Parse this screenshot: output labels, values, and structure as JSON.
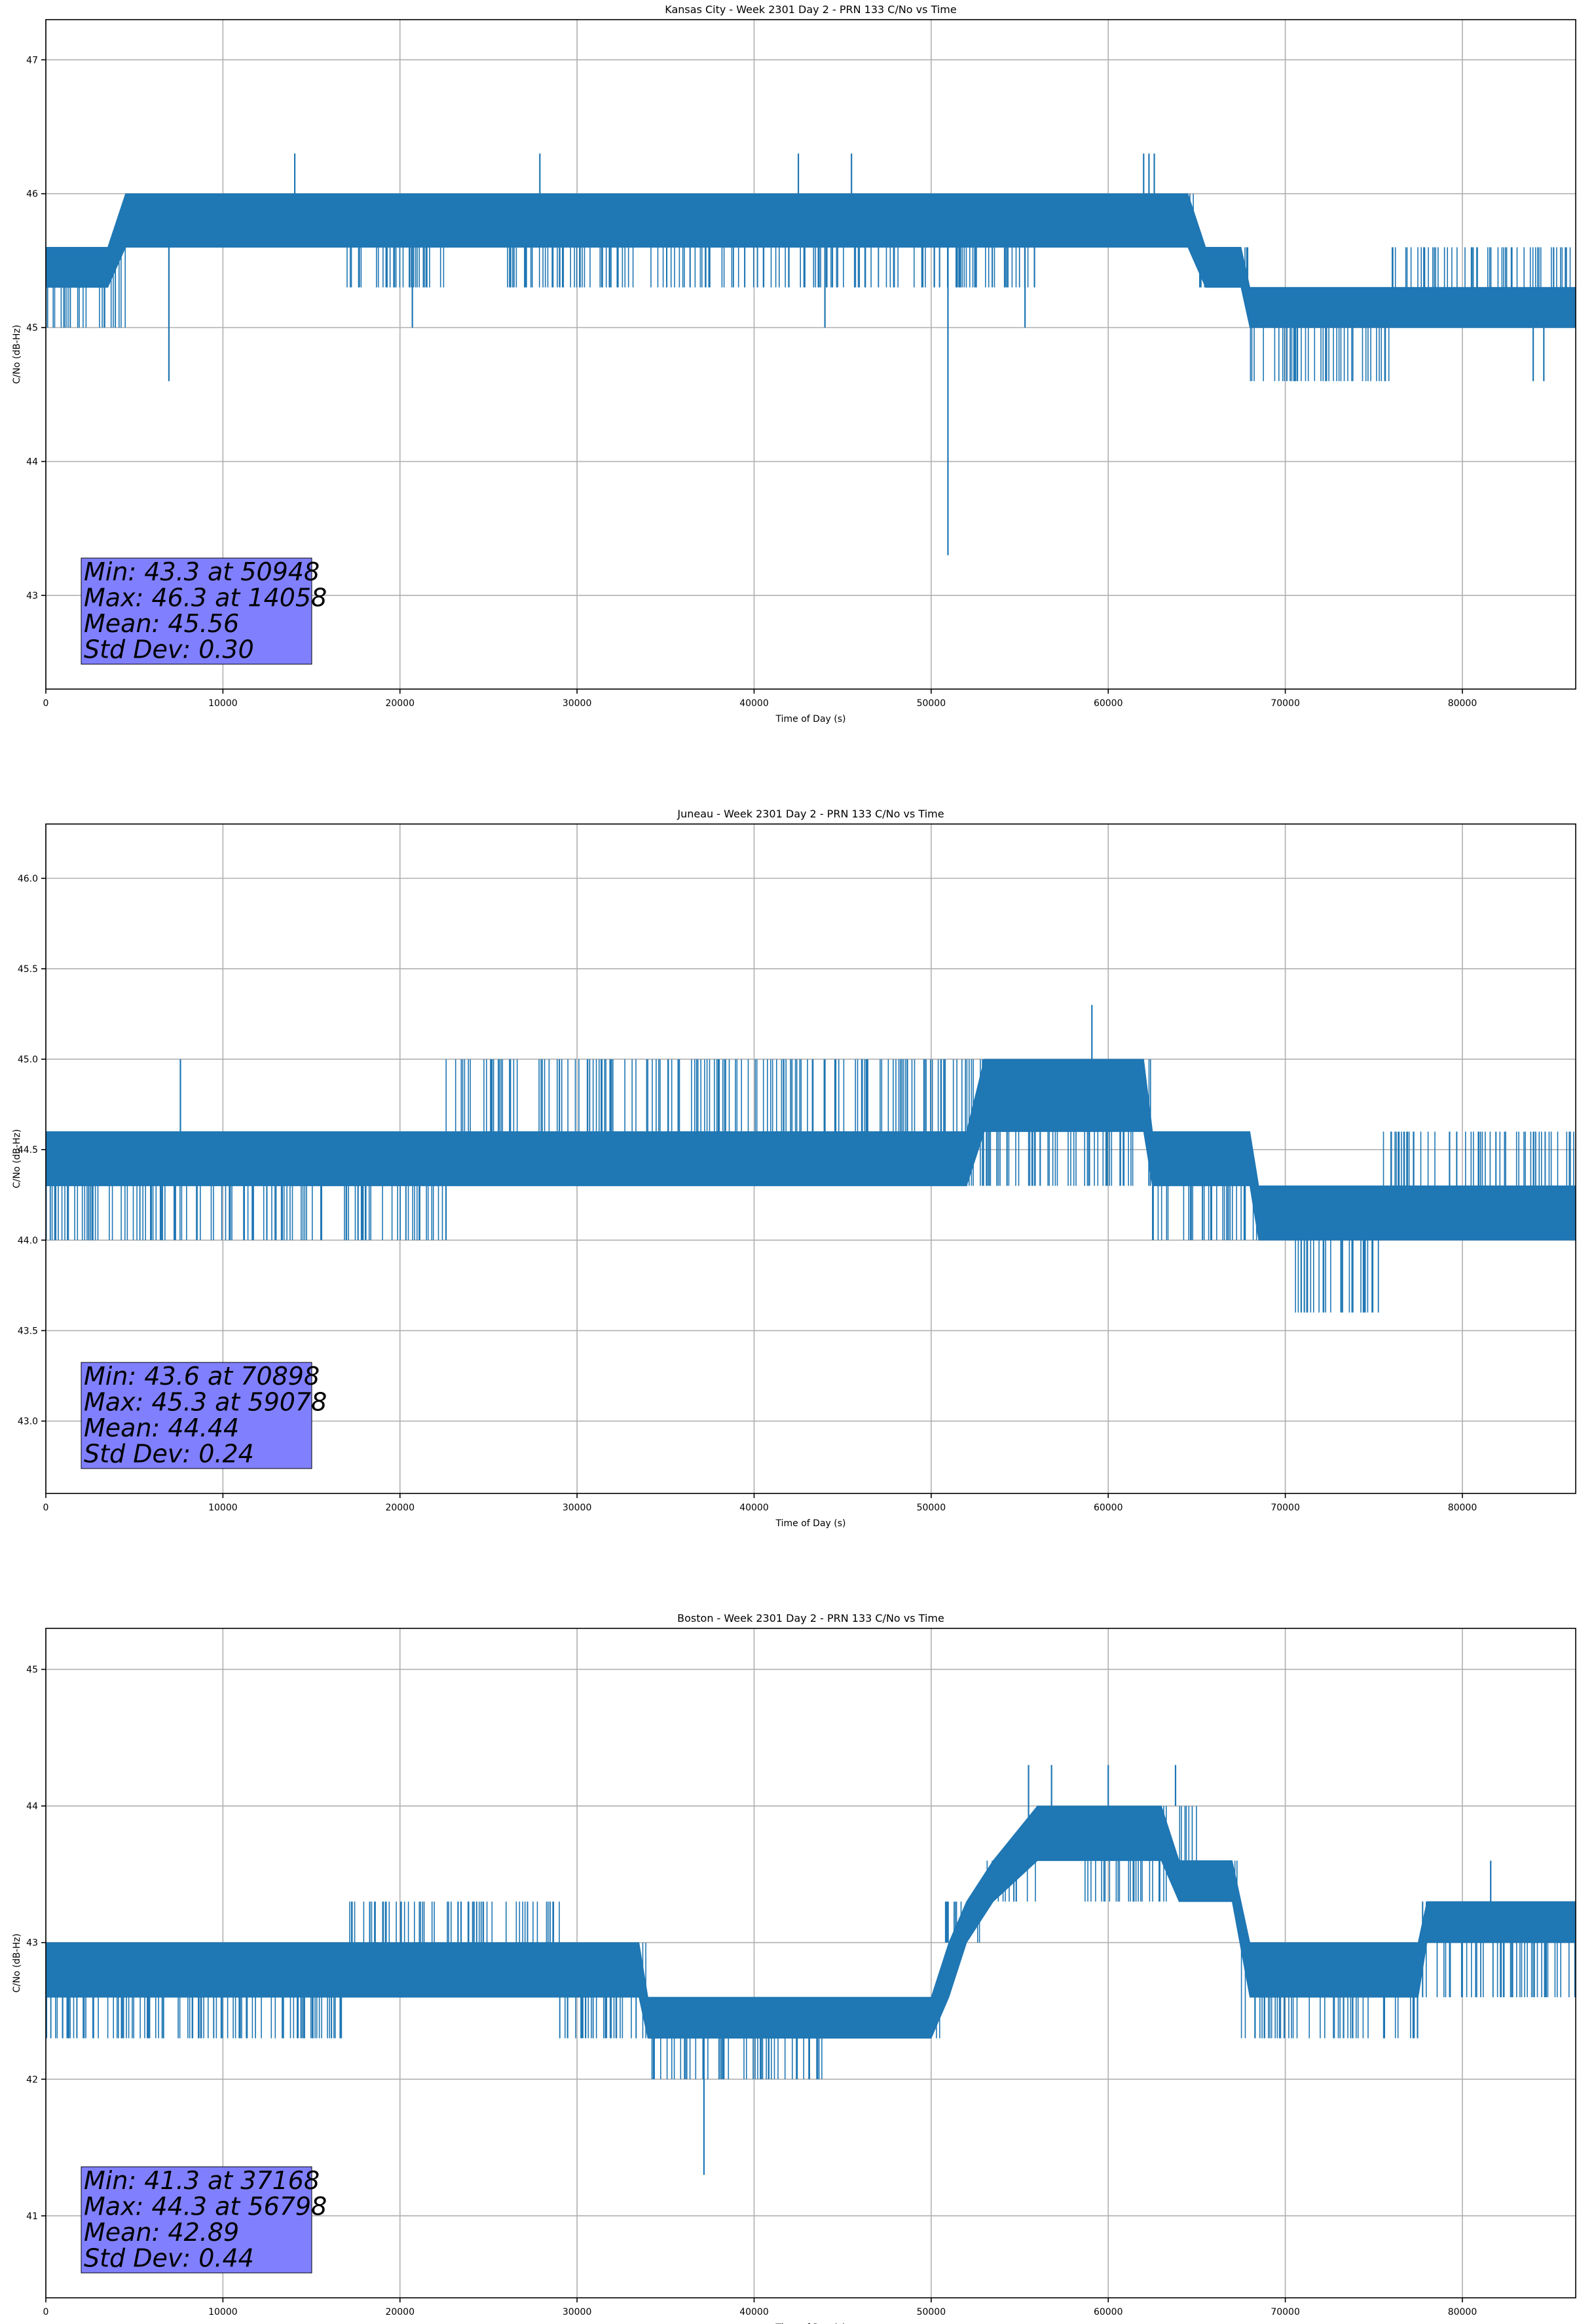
{
  "figure": {
    "background": "#ffffff",
    "line_color": "#1f77b4",
    "stats_box_color": "#8080ff"
  },
  "chart_data": [
    {
      "type": "line",
      "title": "Kansas City - Week 2301 Day 2 - PRN 133 C/No vs Time",
      "xlabel": "Time of Day (s)",
      "ylabel": "C/No (dB-Hz)",
      "xlim": [
        0,
        86400
      ],
      "ylim": [
        42.3,
        47.3
      ],
      "xticks": [
        0,
        10000,
        20000,
        30000,
        40000,
        50000,
        60000,
        70000,
        80000
      ],
      "yticks": [
        43,
        44,
        45,
        46,
        47
      ],
      "ytick_labels": [
        "43",
        "44",
        "45",
        "46",
        "47"
      ],
      "grid": true,
      "band_points": [
        [
          0,
          45.3,
          45.6
        ],
        [
          3500,
          45.3,
          45.6
        ],
        [
          4500,
          45.6,
          46.0
        ],
        [
          64500,
          45.6,
          46.0
        ],
        [
          65500,
          45.3,
          45.6
        ],
        [
          67500,
          45.3,
          45.6
        ],
        [
          68000,
          45.0,
          45.3
        ],
        [
          86400,
          45.0,
          45.3
        ]
      ],
      "hatch_regions": [
        [
          0,
          4500,
          45.0,
          45.6
        ],
        [
          4500,
          15500,
          45.6,
          46.0
        ],
        [
          15500,
          23000,
          45.3,
          46.0
        ],
        [
          23000,
          26000,
          45.6,
          46.0
        ],
        [
          26000,
          40000,
          45.3,
          46.0
        ],
        [
          40000,
          56000,
          45.3,
          46.0
        ],
        [
          56000,
          65000,
          45.6,
          46.0
        ],
        [
          65000,
          68000,
          45.3,
          45.6
        ],
        [
          68000,
          72000,
          44.6,
          45.3
        ],
        [
          72000,
          76000,
          44.6,
          45.3
        ],
        [
          76000,
          86400,
          45.0,
          45.6
        ]
      ],
      "spikes": [
        [
          6950,
          44.6
        ],
        [
          14058,
          46.3
        ],
        [
          20700,
          45.0
        ],
        [
          27900,
          46.3
        ],
        [
          42500,
          46.3
        ],
        [
          44000,
          45.0
        ],
        [
          45500,
          46.3
        ],
        [
          50948,
          43.3
        ],
        [
          55300,
          45.0
        ],
        [
          62000,
          46.3
        ],
        [
          62300,
          46.3
        ],
        [
          62600,
          46.3
        ],
        [
          84000,
          44.6
        ],
        [
          84600,
          44.6
        ]
      ],
      "stats": [
        "Min: 43.3 at 50948",
        "Max: 46.3 at 14058",
        "Mean: 45.56",
        "Std Dev: 0.30"
      ]
    },
    {
      "type": "line",
      "title": "Juneau - Week 2301 Day 2 - PRN 133 C/No vs Time",
      "xlabel": "Time of Day (s)",
      "ylabel": "C/No (dB-Hz)",
      "xlim": [
        0,
        86400
      ],
      "ylim": [
        42.6,
        46.3
      ],
      "xticks": [
        0,
        10000,
        20000,
        30000,
        40000,
        50000,
        60000,
        70000,
        80000
      ],
      "yticks": [
        43.0,
        43.5,
        44.0,
        44.5,
        45.0,
        45.5,
        46.0
      ],
      "ytick_labels": [
        "43.0",
        "43.5",
        "44.0",
        "44.5",
        "45.0",
        "45.5",
        "46.0"
      ],
      "grid": true,
      "band_points": [
        [
          0,
          44.3,
          44.6
        ],
        [
          7000,
          44.3,
          44.6
        ],
        [
          7500,
          44.3,
          44.6
        ],
        [
          31000,
          44.3,
          44.6
        ],
        [
          31500,
          44.3,
          44.6
        ],
        [
          52000,
          44.3,
          44.6
        ],
        [
          53000,
          44.6,
          45.0
        ],
        [
          62000,
          44.6,
          45.0
        ],
        [
          62500,
          44.3,
          44.6
        ],
        [
          68000,
          44.3,
          44.6
        ],
        [
          68500,
          44.0,
          44.3
        ],
        [
          86400,
          44.0,
          44.3
        ]
      ],
      "hatch_regions": [
        [
          0,
          15000,
          44.0,
          44.6
        ],
        [
          15000,
          22500,
          44.0,
          44.6
        ],
        [
          22500,
          31000,
          44.3,
          45.0
        ],
        [
          31000,
          52000,
          44.3,
          45.0
        ],
        [
          52000,
          62500,
          44.3,
          45.0
        ],
        [
          62500,
          68000,
          44.0,
          44.6
        ],
        [
          68000,
          70500,
          44.0,
          44.3
        ],
        [
          70500,
          75500,
          43.6,
          44.0
        ],
        [
          75500,
          86400,
          44.0,
          44.6
        ]
      ],
      "spikes": [
        [
          7600,
          45.0
        ],
        [
          22600,
          44.0
        ],
        [
          59078,
          45.3
        ],
        [
          70898,
          43.6
        ],
        [
          62300,
          44.3
        ]
      ],
      "stats": [
        "Min: 43.6 at 70898",
        "Max: 45.3 at 59078",
        "Mean: 44.44",
        "Std Dev: 0.24"
      ]
    },
    {
      "type": "line",
      "title": "Boston - Week 2301 Day 2 - PRN 133 C/No vs Time",
      "xlabel": "Time of Day (s)",
      "ylabel": "C/No (dB-Hz)",
      "xlim": [
        0,
        86400
      ],
      "ylim": [
        40.4,
        45.3
      ],
      "xticks": [
        0,
        10000,
        20000,
        30000,
        40000,
        50000,
        60000,
        70000,
        80000
      ],
      "yticks": [
        41,
        42,
        43,
        44,
        45
      ],
      "ytick_labels": [
        "41",
        "42",
        "43",
        "44",
        "45"
      ],
      "grid": true,
      "band_points": [
        [
          0,
          42.6,
          43.0
        ],
        [
          28500,
          42.6,
          43.0
        ],
        [
          33500,
          42.6,
          43.0
        ],
        [
          34000,
          42.3,
          42.6
        ],
        [
          50000,
          42.3,
          42.6
        ],
        [
          51000,
          42.6,
          43.0
        ],
        [
          52000,
          43.0,
          43.3
        ],
        [
          53500,
          43.3,
          43.6
        ],
        [
          56000,
          43.6,
          44.0
        ],
        [
          63000,
          43.6,
          44.0
        ],
        [
          64000,
          43.3,
          43.6
        ],
        [
          67000,
          43.3,
          43.6
        ],
        [
          68000,
          42.6,
          43.0
        ],
        [
          77500,
          42.6,
          43.0
        ],
        [
          78000,
          43.0,
          43.3
        ],
        [
          86400,
          43.0,
          43.3
        ]
      ],
      "hatch_regions": [
        [
          0,
          17000,
          42.3,
          43.0
        ],
        [
          17000,
          29000,
          42.6,
          43.3
        ],
        [
          29000,
          34000,
          42.3,
          43.0
        ],
        [
          34000,
          38000,
          42.0,
          42.6
        ],
        [
          38000,
          44000,
          42.0,
          42.6
        ],
        [
          44000,
          50500,
          42.3,
          42.6
        ],
        [
          50500,
          53000,
          43.0,
          43.3
        ],
        [
          53000,
          56000,
          43.3,
          43.6
        ],
        [
          56000,
          58500,
          43.6,
          44.0
        ],
        [
          58500,
          65000,
          43.3,
          44.0
        ],
        [
          65000,
          67500,
          43.3,
          43.6
        ],
        [
          67500,
          77500,
          42.3,
          43.0
        ],
        [
          77500,
          86400,
          42.6,
          43.3
        ]
      ],
      "spikes": [
        [
          37168,
          41.3
        ],
        [
          56798,
          44.3
        ],
        [
          55500,
          44.3
        ],
        [
          60000,
          44.3
        ],
        [
          63800,
          44.3
        ],
        [
          81600,
          43.6
        ]
      ],
      "stats": [
        "Min: 41.3 at 37168",
        "Max: 44.3 at 56798",
        "Mean: 42.89",
        "Std Dev: 0.44"
      ]
    }
  ]
}
